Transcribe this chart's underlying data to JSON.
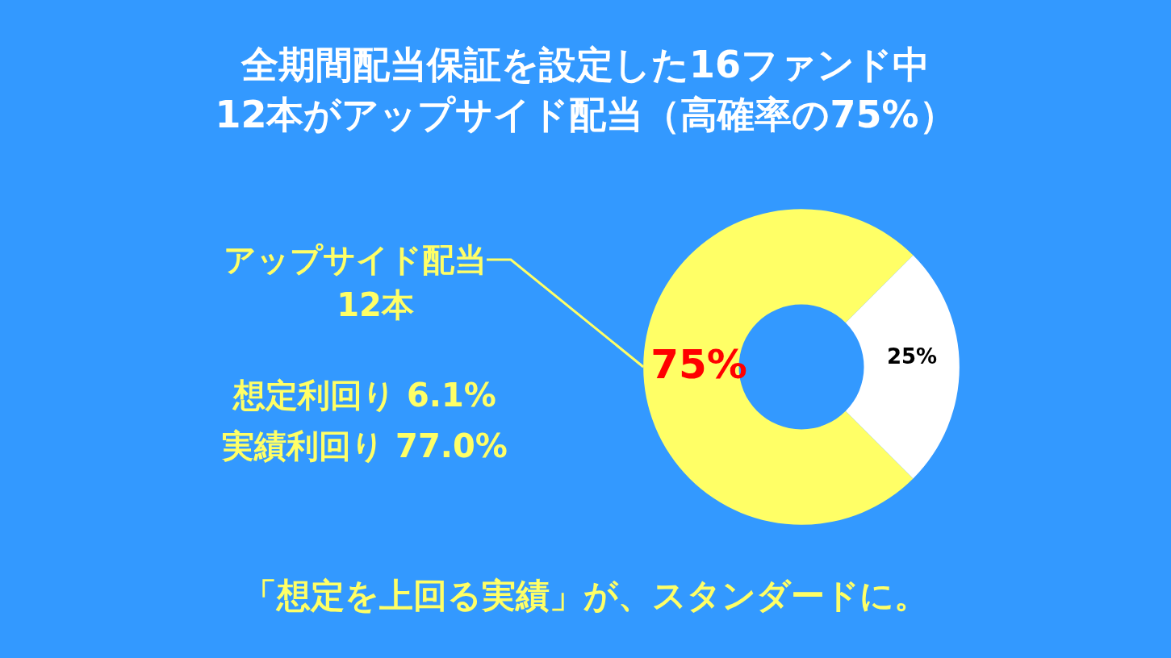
{
  "chart_data": {
    "type": "donut",
    "title": "全期間配当保証を設定した16ファンド中",
    "subtitle": "12本がアップサイド配当（高確率の75%）",
    "categories": [
      "アップサイド配当",
      null
    ],
    "values": [
      75,
      25
    ],
    "colors": [
      "#ffff66",
      "#ffffff"
    ],
    "value_labels": [
      "75%",
      "25%"
    ],
    "annotations": [
      "12本",
      "想定利回り 6.1%",
      "実績利回り 77.0%",
      "「想定を上回る実績」が、スタンダードに。"
    ],
    "legend": false
  }
}
